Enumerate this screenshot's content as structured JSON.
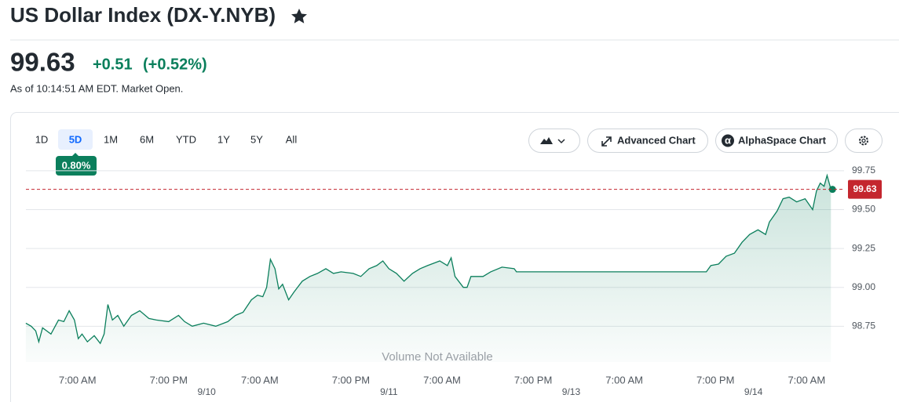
{
  "header": {
    "title": "US Dollar Index (DX-Y.NYB)",
    "price": "99.63",
    "change": "+0.51",
    "change_percent": "(+0.52%)",
    "as_of": "As of 10:14:51 AM EDT. Market Open."
  },
  "controls": {
    "ranges": [
      "1D",
      "5D",
      "1M",
      "6M",
      "YTD",
      "1Y",
      "5Y",
      "All"
    ],
    "active_range_index": 1,
    "range_change": "0.80%",
    "buttons": [
      "Advanced Chart",
      "AlphaSpace Chart"
    ]
  },
  "chart_data": {
    "type": "line",
    "color": "#0b7f5c",
    "x": [
      -6.8,
      -6.1,
      -5.5,
      -5.1,
      -4.6,
      -3.5,
      -2.5,
      -1.8,
      -1.1,
      -0.4,
      0.1,
      0.6,
      1.3,
      2.2,
      3.0,
      3.5,
      4.0,
      4.6,
      5.3,
      6.1,
      7.1,
      8.2,
      9.4,
      10.4,
      12.0,
      13.3,
      14.1,
      15.1,
      16.6,
      18.2,
      19.8,
      20.8,
      21.8,
      22.9,
      23.7,
      24.4,
      24.9,
      25.4,
      26.0,
      26.5,
      27.0,
      27.8,
      28.5,
      29.6,
      30.6,
      31.6,
      32.7,
      33.7,
      34.7,
      36.3,
      37.3,
      38.4,
      39.4,
      40.2,
      41.0,
      42.0,
      43.0,
      44.1,
      45.1,
      46.1,
      47.7,
      48.7,
      49.2,
      49.7,
      50.8,
      51.3,
      51.8,
      53.4,
      54.4,
      55.9,
      57.5,
      57.8,
      82.8,
      83.4,
      84.4,
      85.4,
      86.5,
      87.5,
      88.5,
      89.6,
      90.6,
      91.1,
      92.1,
      92.9,
      93.7,
      94.7,
      95.8,
      96.8,
      97.3,
      97.8,
      98.3,
      98.7,
      99.2
    ],
    "values": [
      98.77,
      98.75,
      98.72,
      98.65,
      98.74,
      98.7,
      98.79,
      98.78,
      98.85,
      98.79,
      98.67,
      98.7,
      98.65,
      98.69,
      98.64,
      98.7,
      98.89,
      98.79,
      98.82,
      98.75,
      98.82,
      98.85,
      98.8,
      98.79,
      98.78,
      98.82,
      98.78,
      98.75,
      98.77,
      98.75,
      98.78,
      98.82,
      98.84,
      98.92,
      98.95,
      98.94,
      99.0,
      99.18,
      99.12,
      98.99,
      99.02,
      98.92,
      98.97,
      99.04,
      99.07,
      99.09,
      99.12,
      99.09,
      99.1,
      99.09,
      99.07,
      99.12,
      99.14,
      99.17,
      99.12,
      99.09,
      99.04,
      99.09,
      99.12,
      99.14,
      99.17,
      99.14,
      99.19,
      99.07,
      99.0,
      99.0,
      99.07,
      99.07,
      99.1,
      99.13,
      99.12,
      99.1,
      99.1,
      99.14,
      99.15,
      99.2,
      99.22,
      99.29,
      99.34,
      99.37,
      99.34,
      99.42,
      99.49,
      99.57,
      99.58,
      99.55,
      99.57,
      99.5,
      99.62,
      99.67,
      99.65,
      99.72,
      99.63
    ],
    "xlim": [
      -7,
      100
    ],
    "ylim": [
      98.52,
      99.84
    ],
    "yticks": [
      99.75,
      {
        "value": 99.5,
        "label": "99.50"
      },
      99.25,
      {
        "value": 99,
        "label": "99.00"
      },
      98.75
    ],
    "xticks": [
      {
        "value": 0,
        "label": "7:00 AM"
      },
      {
        "value": 12,
        "label": "7:00 PM"
      },
      {
        "value": 24,
        "label": "7:00 AM"
      },
      {
        "value": 36,
        "label": "7:00 PM"
      },
      {
        "value": 48,
        "label": "7:00 AM"
      },
      {
        "value": 60,
        "label": "7:00 PM"
      },
      {
        "value": 72,
        "label": "7:00 AM"
      },
      {
        "value": 84,
        "label": "7:00 PM"
      },
      {
        "value": 96,
        "label": "7:00 AM"
      }
    ],
    "xticks_dates": [
      {
        "value": 17,
        "label": "9/10"
      },
      {
        "value": 41,
        "label": "9/11"
      },
      {
        "value": 65,
        "label": "9/13"
      },
      {
        "value": 89,
        "label": "9/14"
      }
    ],
    "reference_line": 99.63,
    "reference_color": "#c4262e",
    "annotation": "Volume Not Available",
    "grid": true
  }
}
